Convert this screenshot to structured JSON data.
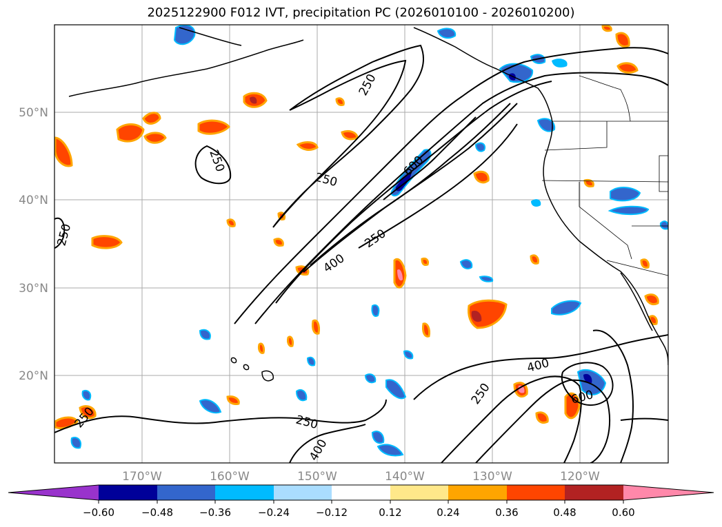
{
  "title": "2025122900 F012 IVT, precipitation PC (2026010100 - 2026010200)",
  "map": {
    "lon_range": [
      -177,
      -107
    ],
    "lat_range": [
      10,
      60
    ],
    "lat_labels": [
      {
        "lat": 50,
        "label": "50°N"
      },
      {
        "lat": 40,
        "label": "40°N"
      },
      {
        "lat": 30,
        "label": "30°N"
      },
      {
        "lat": 20,
        "label": "20°N"
      }
    ],
    "lon_labels": [
      {
        "lon": -170,
        "label": "170°W"
      },
      {
        "lon": -160,
        "label": "160°W"
      },
      {
        "lon": -150,
        "label": "150°W"
      },
      {
        "lon": -140,
        "label": "140°W"
      },
      {
        "lon": -130,
        "label": "130°W"
      },
      {
        "lon": -120,
        "label": "120°W"
      }
    ],
    "contour_labels": [
      "250",
      "250",
      "250",
      "250",
      "600",
      "250",
      "400",
      "250",
      "250",
      "400",
      "400",
      "600",
      "250"
    ]
  },
  "colorbar": {
    "colors": [
      "#9933cc",
      "#000099",
      "#3366cc",
      "#00bbff",
      "#aaddff",
      "#ffffff",
      "#ffe88a",
      "#ffa500",
      "#ff4500",
      "#b22222",
      "#ff88aa"
    ],
    "ticks": [
      "−0.60",
      "−0.48",
      "−0.36",
      "−0.24",
      "−0.12",
      "0.12",
      "0.24",
      "0.36",
      "0.48",
      "0.60"
    ]
  }
}
